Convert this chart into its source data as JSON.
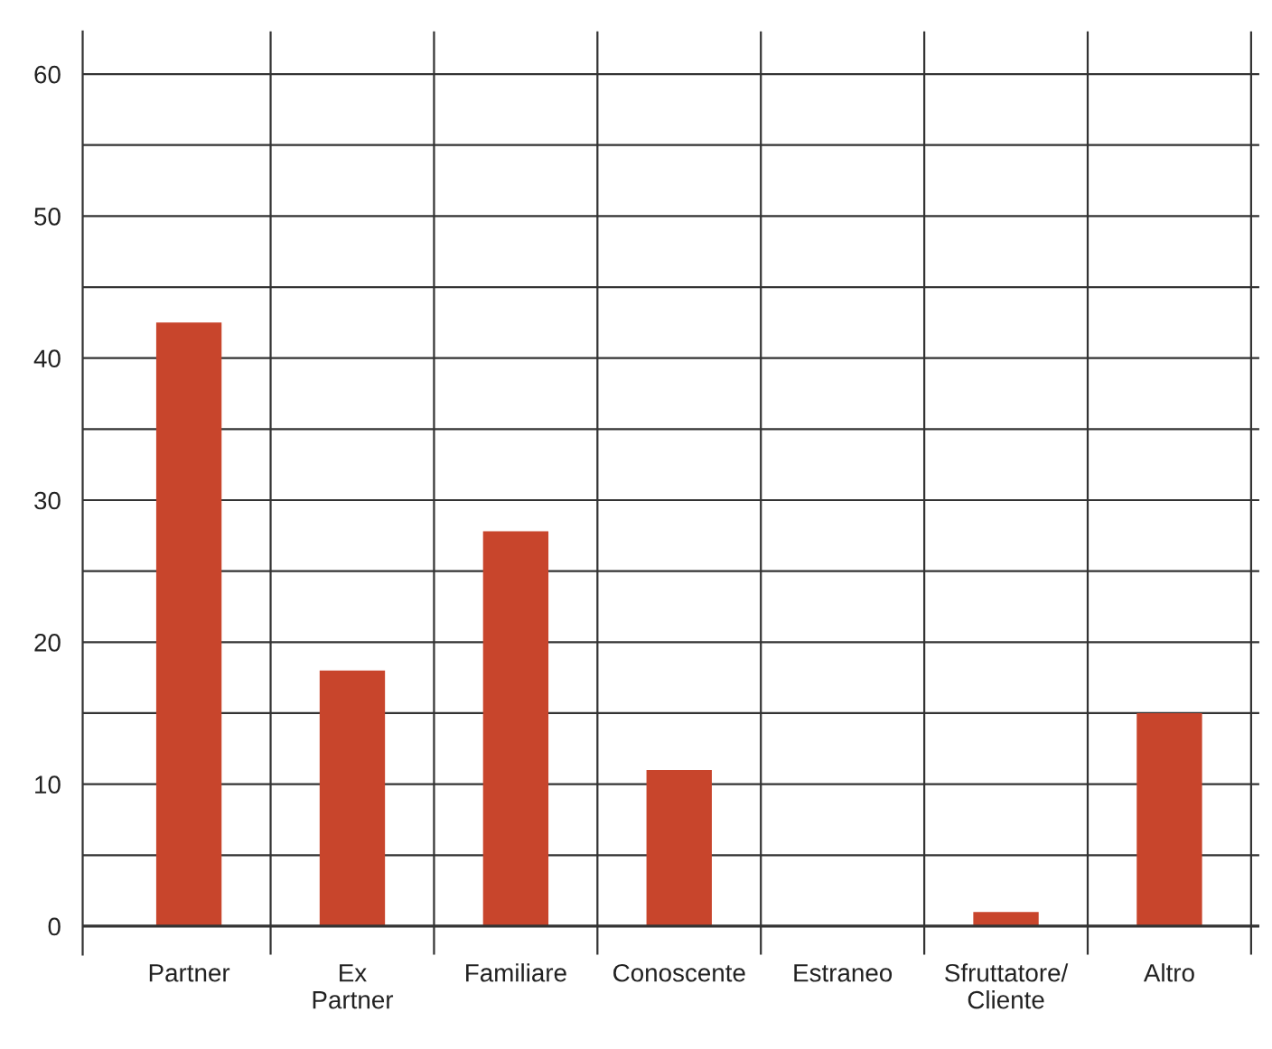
{
  "chart_data": {
    "type": "bar",
    "categories": [
      "Partner",
      "Ex\nPartner",
      "Familiare",
      "Conoscente",
      "Estraneo",
      "Sfruttatore/\nCliente",
      "Altro"
    ],
    "values": [
      42.5,
      18,
      27.8,
      11,
      0,
      1,
      15
    ],
    "color": "#c8452c",
    "ylim": [
      -2,
      63
    ],
    "yticks": [
      0,
      {
        "value": 5,
        "label": null
      },
      10,
      {
        "value": 15,
        "label": null
      },
      20,
      {
        "value": 25,
        "label": null
      },
      30,
      {
        "value": 35,
        "label": null
      },
      40,
      {
        "value": 45,
        "label": null
      },
      50,
      {
        "value": 55,
        "label": null
      },
      60
    ],
    "grid": true,
    "legend": false
  }
}
